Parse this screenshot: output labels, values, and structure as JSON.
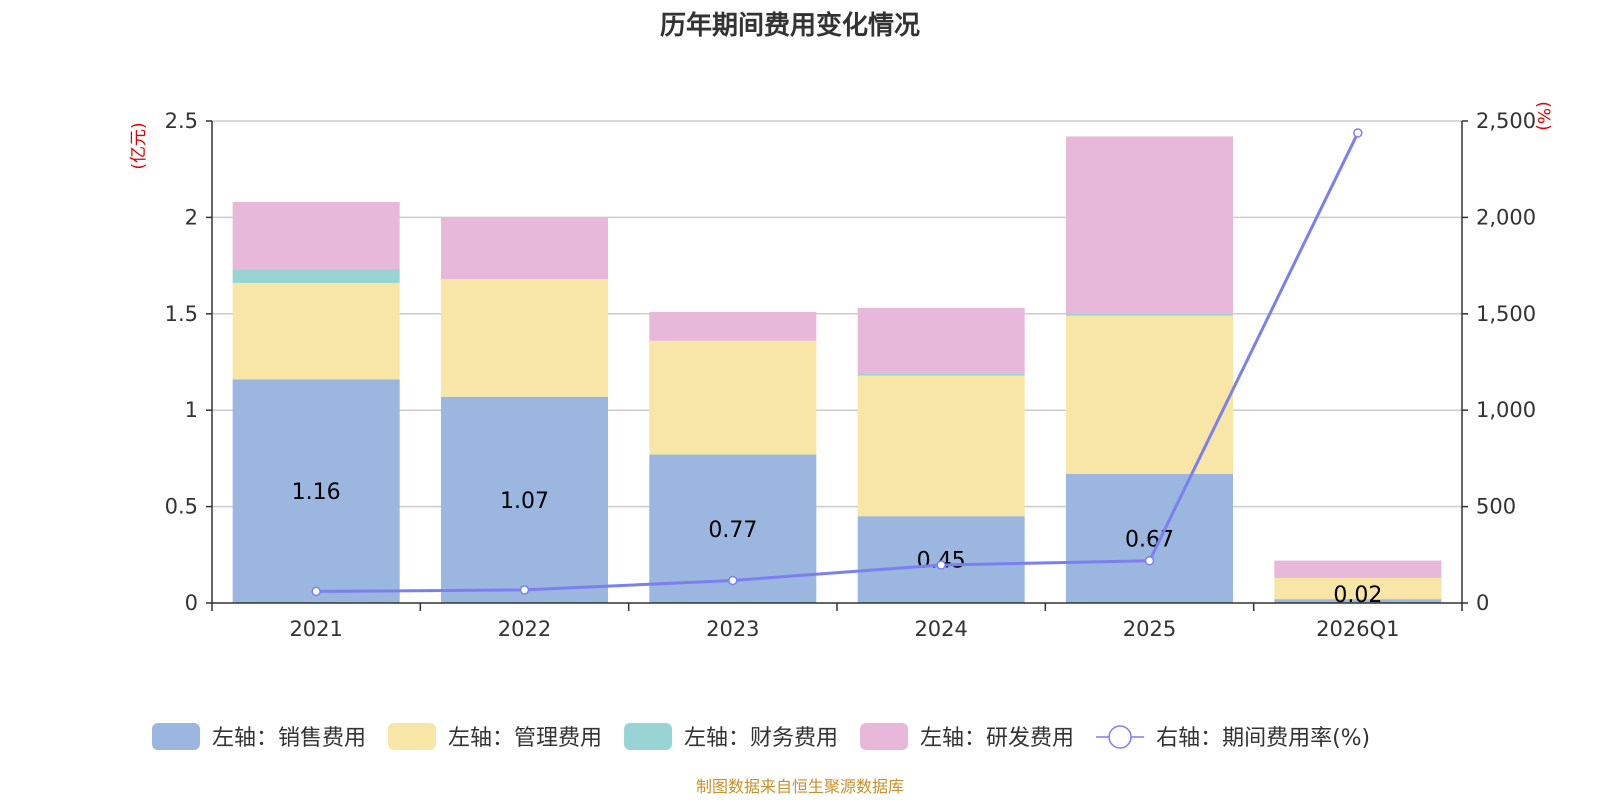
{
  "title": "历年期间费用变化情况",
  "source": "制图数据来自恒生聚源数据库",
  "chart_data": {
    "type": "bar",
    "stacked": true,
    "title": "历年期间费用变化情况",
    "categories": [
      "2021",
      "2022",
      "2023",
      "2024",
      "2025",
      "2026Q1"
    ],
    "left_axis": {
      "unit": "(亿元)",
      "ylim": [
        0,
        2.5
      ],
      "ticks": [
        0,
        0.5,
        1,
        1.5,
        2,
        2.5
      ],
      "tick_labels": [
        "0",
        "0.5",
        "1",
        "1.5",
        "2",
        "2.5"
      ]
    },
    "right_axis": {
      "unit": "(%)",
      "ylim": [
        0,
        2500
      ],
      "ticks": [
        0,
        500,
        1000,
        1500,
        2000,
        2500
      ],
      "tick_labels": [
        "0",
        "500",
        "1,000",
        "1,500",
        "2,000",
        "2,500"
      ]
    },
    "series": [
      {
        "name": "左轴：销售费用",
        "axis": "left",
        "type": "bar",
        "color": "#9bb7e0",
        "values": [
          1.16,
          1.07,
          0.77,
          0.45,
          0.67,
          0.02
        ],
        "labels": [
          "1.16",
          "1.07",
          "0.77",
          "0.45",
          "0.67",
          "0.02"
        ]
      },
      {
        "name": "左轴：管理费用",
        "axis": "left",
        "type": "bar",
        "color": "#f8e6a6",
        "values": [
          0.5,
          0.61,
          0.59,
          0.73,
          0.82,
          0.11
        ]
      },
      {
        "name": "左轴：财务费用",
        "axis": "left",
        "type": "bar",
        "color": "#98d4d4",
        "values": [
          0.07,
          0.0,
          0.0,
          0.01,
          0.01,
          0.0
        ]
      },
      {
        "name": "左轴：研发费用",
        "axis": "left",
        "type": "bar",
        "color": "#e8b8da",
        "values": [
          0.35,
          0.32,
          0.15,
          0.34,
          0.92,
          0.09
        ]
      },
      {
        "name": "右轴：期间费用率(%)",
        "axis": "right",
        "type": "line",
        "color": "#7b7fef",
        "values": [
          60,
          68,
          117,
          197,
          219,
          2438
        ]
      }
    ],
    "legend_position": "bottom",
    "grid": true
  }
}
